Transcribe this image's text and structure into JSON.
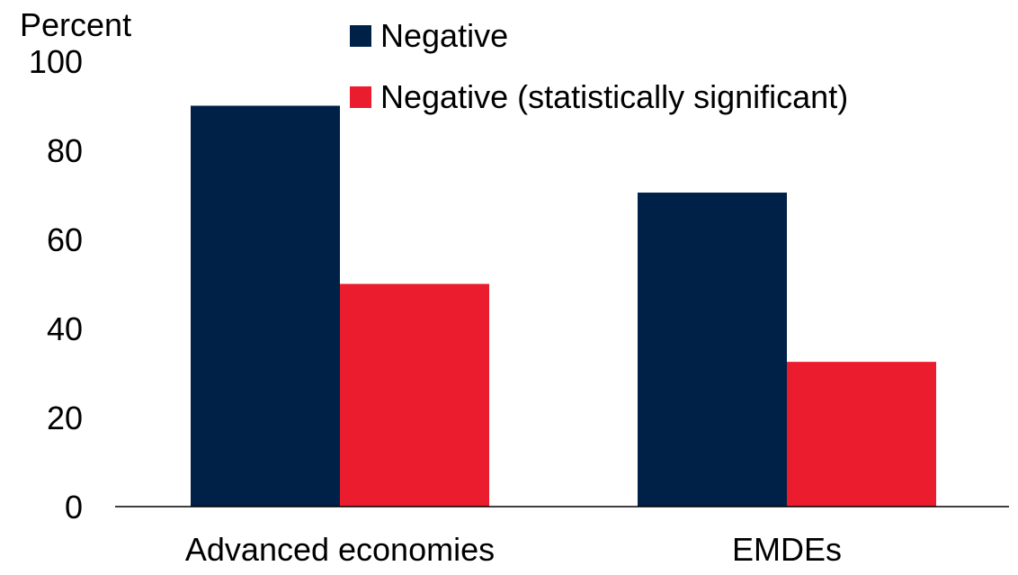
{
  "chart_data": {
    "type": "bar",
    "ylabel": "Percent",
    "categories": [
      "Advanced economies",
      "EMDEs"
    ],
    "series": [
      {
        "name": "Negative",
        "values": [
          90,
          70.5
        ],
        "color": "#002147"
      },
      {
        "name": "Negative (statistically significant)",
        "values": [
          50,
          32.5
        ],
        "color": "#EB1C2D"
      }
    ],
    "ylim": [
      0,
      100
    ],
    "yticks": [
      0,
      20,
      40,
      60,
      80,
      100
    ],
    "grid": false,
    "legend_position": "top"
  }
}
